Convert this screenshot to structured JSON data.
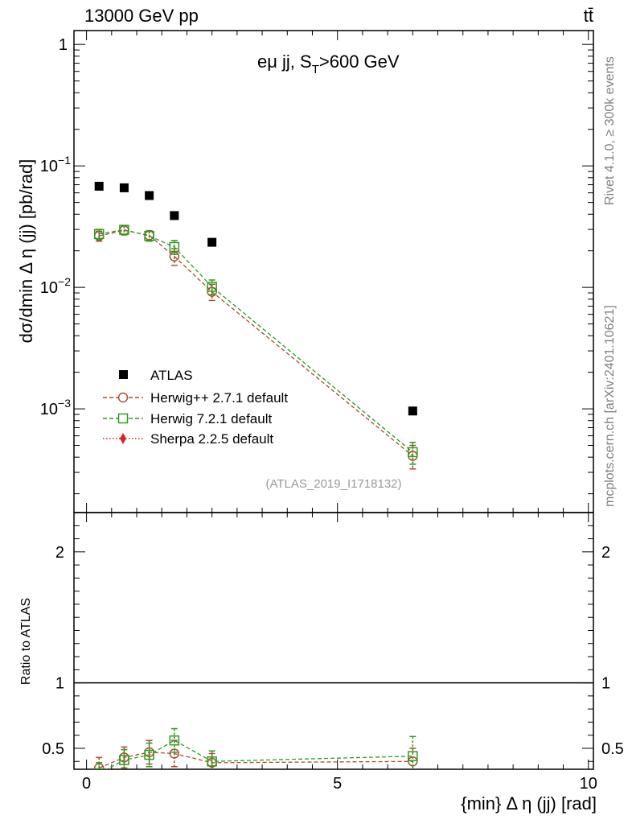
{
  "header": {
    "left": "13000 GeV pp",
    "right": "tt̄"
  },
  "side_labels": {
    "top": "Rivet 4.1.0, ≥ 300k events",
    "bottom": "mcplots.cern.ch [arXiv:2401.10621]"
  },
  "chart_data": [
    {
      "type": "scatter",
      "panel": "main",
      "title": "eμ jj, S_T>600 GeV",
      "title_main": "eμ jj, S",
      "title_sub": "T",
      "title_tail": ">600 GeV",
      "ylabel": "dσ/dmin Δ η (jj) [pb/rad]",
      "yscale": "log",
      "ylim": [
        0.00014,
        1.3
      ],
      "xlim": [
        -0.25,
        10.1
      ],
      "ytick_labels": [
        {
          "value": 1,
          "base": "1",
          "exp": ""
        },
        {
          "value": 0.1,
          "base": "10",
          "exp": "−1"
        },
        {
          "value": 0.01,
          "base": "10",
          "exp": "−2"
        },
        {
          "value": 0.001,
          "base": "10",
          "exp": "−3"
        }
      ],
      "analysis_id": "(ATLAS_2019_I1718132)",
      "x": [
        0.25,
        0.75,
        1.25,
        1.75,
        2.5,
        6.5
      ],
      "series": [
        {
          "name": "ATLAS",
          "marker": "square-filled",
          "color": "#000000",
          "line": "none",
          "values": [
            0.068,
            0.066,
            0.057,
            0.039,
            0.0235,
            0.00096
          ],
          "err": [
            0.003,
            0.003,
            0.0025,
            0.0018,
            0.0012,
            5e-05
          ]
        },
        {
          "name": "Herwig++ 2.7.1 default",
          "marker": "circle-open",
          "color": "#a0522d",
          "line": "dashed",
          "values": [
            0.0265,
            0.0295,
            0.0268,
            0.018,
            0.0092,
            0.00041
          ],
          "err": [
            0.0025,
            0.0025,
            0.0025,
            0.0028,
            0.0014,
            9e-05
          ]
        },
        {
          "name": "Herwig 7.2.1 default",
          "marker": "square-open",
          "color": "#339922",
          "line": "dashed",
          "values": [
            0.0275,
            0.0298,
            0.0265,
            0.0215,
            0.0101,
            0.00044
          ],
          "err": [
            0.0025,
            0.0025,
            0.0025,
            0.0028,
            0.0014,
            9e-05
          ]
        },
        {
          "name": "Sherpa 2.2.5 default",
          "marker": "diamond-filled",
          "color": "#e02020",
          "line": "dotted",
          "values": [],
          "err": []
        }
      ]
    },
    {
      "type": "line",
      "panel": "ratio",
      "ylabel": "Ratio to ATLAS",
      "xlabel": "{min} Δ η (jj) [rad]",
      "ylim": [
        0.34,
        2.3
      ],
      "xlim": [
        -0.25,
        10.1
      ],
      "yticks": [
        0.5,
        1,
        2
      ],
      "ytick_labels": [
        "0.5",
        "1",
        "2"
      ],
      "xticks": [
        0,
        5,
        10
      ],
      "xtick_labels": [
        "0",
        "5",
        "10"
      ],
      "reference": 1,
      "x": [
        0.25,
        0.75,
        1.25,
        1.75,
        2.5,
        6.5
      ],
      "series": [
        {
          "name": "Herwig++ 2.7.1 default",
          "color": "#a0522d",
          "marker": "circle-open",
          "values": [
            0.35,
            0.43,
            0.47,
            0.46,
            0.39,
            0.4
          ],
          "err": [
            0.08,
            0.08,
            0.09,
            0.1,
            0.07,
            0.1
          ]
        },
        {
          "name": "Herwig 7.2.1 default",
          "color": "#339922",
          "marker": "square-open",
          "values": [
            0.31,
            0.41,
            0.45,
            0.56,
            0.4,
            0.44
          ],
          "err": [
            0.08,
            0.08,
            0.09,
            0.09,
            0.08,
            0.15
          ]
        }
      ]
    }
  ]
}
